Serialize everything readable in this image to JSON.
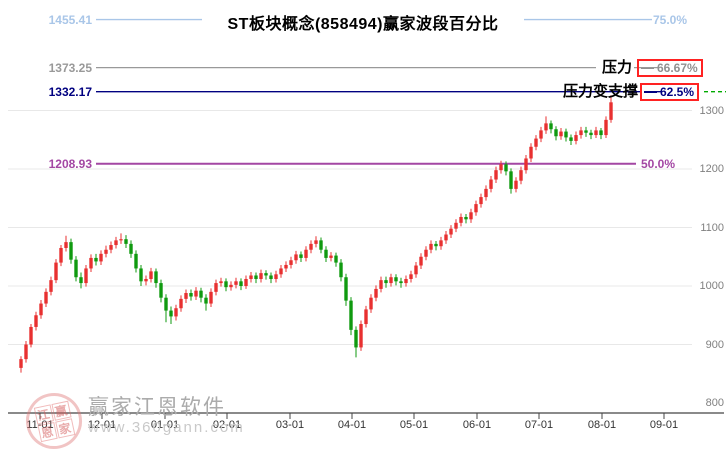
{
  "title": "ST板块概念(858494)赢家波段百分比",
  "levels": [
    {
      "price_label": "1455.41",
      "pct_label": "75.0%",
      "price": 1455.41,
      "color": "#a9c6e8",
      "annotation": "",
      "boxed": false
    },
    {
      "price_label": "1373.25",
      "pct_label": "66.67%",
      "price": 1373.25,
      "color": "#999999",
      "annotation": "压力",
      "boxed": true
    },
    {
      "price_label": "1332.17",
      "pct_label": "62.5%",
      "price": 1332.17,
      "color": "#000080",
      "annotation": "压力变支撑",
      "boxed": true
    },
    {
      "price_label": "1208.93",
      "pct_label": "50.0%",
      "price": 1208.93,
      "color": "#a347a3",
      "annotation": "",
      "boxed": false
    }
  ],
  "y_axis": {
    "tick_labels": [
      "1300",
      "1200",
      "1100",
      "1000",
      "900",
      "800"
    ],
    "tick_values": [
      1300,
      1200,
      1100,
      1000,
      900,
      800
    ]
  },
  "x_axis": {
    "tick_labels": [
      "11-01",
      "12-01",
      "01-01",
      "02-01",
      "03-01",
      "04-01",
      "05-01",
      "06-01",
      "07-01",
      "08-01",
      "09-01"
    ]
  },
  "watermark": {
    "brand": "赢家江恩软件",
    "url": "www.360gann.com",
    "seal_chars": [
      "江",
      "赢",
      "恩",
      "家"
    ]
  },
  "chart_data": {
    "type": "candlestick",
    "title": "ST板块概念(858494)赢家波段百分比",
    "ylim": [
      800,
      1455.41
    ],
    "x_range": [
      "11-01",
      "08-01+"
    ],
    "grid": true,
    "up_color": "#e83030",
    "down_color": "#0f9a0f",
    "support_resistance": [
      {
        "label": "75.0%",
        "price": 1455.41
      },
      {
        "label": "66.67%",
        "price": 1373.25,
        "name": "压力"
      },
      {
        "label": "62.5%",
        "price": 1332.17,
        "name": "压力变支撑"
      },
      {
        "label": "50.0%",
        "price": 1208.93
      }
    ],
    "candles_ohlc": [
      [
        860,
        880,
        852,
        875
      ],
      [
        875,
        906,
        869,
        900
      ],
      [
        900,
        935,
        895,
        930
      ],
      [
        930,
        956,
        924,
        950
      ],
      [
        950,
        976,
        944,
        970
      ],
      [
        970,
        996,
        964,
        990
      ],
      [
        990,
        1016,
        984,
        1010
      ],
      [
        1010,
        1046,
        1005,
        1040
      ],
      [
        1040,
        1070,
        1034,
        1065
      ],
      [
        1065,
        1086,
        1059,
        1075
      ],
      [
        1075,
        1081,
        1038,
        1045
      ],
      [
        1045,
        1051,
        1008,
        1015
      ],
      [
        1015,
        1023,
        996,
        1005
      ],
      [
        1005,
        1036,
        999,
        1030
      ],
      [
        1030,
        1054,
        1024,
        1048
      ],
      [
        1048,
        1055,
        1035,
        1042
      ],
      [
        1042,
        1061,
        1036,
        1055
      ],
      [
        1055,
        1069,
        1049,
        1062
      ],
      [
        1062,
        1076,
        1056,
        1070
      ],
      [
        1070,
        1084,
        1064,
        1078
      ],
      [
        1078,
        1090,
        1072,
        1080
      ],
      [
        1080,
        1087,
        1065,
        1072
      ],
      [
        1072,
        1078,
        1048,
        1055
      ],
      [
        1055,
        1061,
        1023,
        1030
      ],
      [
        1030,
        1036,
        1000,
        1008
      ],
      [
        1008,
        1018,
        1001,
        1012
      ],
      [
        1012,
        1031,
        1006,
        1025
      ],
      [
        1025,
        1030,
        997,
        1005
      ],
      [
        1005,
        1011,
        972,
        980
      ],
      [
        980,
        986,
        938,
        958
      ],
      [
        958,
        965,
        935,
        948
      ],
      [
        948,
        968,
        941,
        962
      ],
      [
        962,
        984,
        956,
        978
      ],
      [
        978,
        994,
        971,
        988
      ],
      [
        988,
        994,
        975,
        982
      ],
      [
        982,
        998,
        976,
        992
      ],
      [
        992,
        997,
        972,
        980
      ],
      [
        980,
        986,
        958,
        970
      ],
      [
        970,
        996,
        964,
        990
      ],
      [
        990,
        1011,
        984,
        1005
      ],
      [
        1005,
        1014,
        999,
        1008
      ],
      [
        1008,
        1013,
        991,
        998
      ],
      [
        998,
        1008,
        992,
        1002
      ],
      [
        1002,
        1014,
        996,
        1008
      ],
      [
        1008,
        1013,
        993,
        1000
      ],
      [
        1000,
        1018,
        995,
        1012
      ],
      [
        1012,
        1024,
        1006,
        1018
      ],
      [
        1018,
        1023,
        1005,
        1012
      ],
      [
        1012,
        1028,
        1006,
        1022
      ],
      [
        1022,
        1027,
        1011,
        1018
      ],
      [
        1018,
        1023,
        1005,
        1012
      ],
      [
        1012,
        1026,
        1006,
        1020
      ],
      [
        1020,
        1036,
        1014,
        1030
      ],
      [
        1030,
        1042,
        1024,
        1036
      ],
      [
        1036,
        1050,
        1030,
        1044
      ],
      [
        1044,
        1060,
        1038,
        1054
      ],
      [
        1054,
        1059,
        1041,
        1048
      ],
      [
        1048,
        1068,
        1042,
        1062
      ],
      [
        1062,
        1078,
        1056,
        1072
      ],
      [
        1072,
        1085,
        1066,
        1078
      ],
      [
        1078,
        1083,
        1056,
        1062
      ],
      [
        1062,
        1068,
        1041,
        1048
      ],
      [
        1048,
        1058,
        1042,
        1052
      ],
      [
        1052,
        1057,
        1033,
        1040
      ],
      [
        1040,
        1046,
        1008,
        1015
      ],
      [
        1015,
        1021,
        966,
        975
      ],
      [
        975,
        981,
        916,
        925
      ],
      [
        925,
        931,
        878,
        895
      ],
      [
        895,
        941,
        889,
        935
      ],
      [
        935,
        966,
        929,
        960
      ],
      [
        960,
        986,
        954,
        980
      ],
      [
        980,
        1001,
        974,
        995
      ],
      [
        995,
        1016,
        989,
        1010
      ],
      [
        1010,
        1016,
        997,
        1005
      ],
      [
        1005,
        1021,
        999,
        1015
      ],
      [
        1015,
        1020,
        1001,
        1008
      ],
      [
        1008,
        1014,
        997,
        1005
      ],
      [
        1005,
        1018,
        999,
        1012
      ],
      [
        1012,
        1026,
        1006,
        1020
      ],
      [
        1020,
        1041,
        1014,
        1035
      ],
      [
        1035,
        1056,
        1029,
        1050
      ],
      [
        1050,
        1068,
        1044,
        1062
      ],
      [
        1062,
        1078,
        1056,
        1072
      ],
      [
        1072,
        1077,
        1061,
        1068
      ],
      [
        1068,
        1084,
        1062,
        1078
      ],
      [
        1078,
        1094,
        1072,
        1088
      ],
      [
        1088,
        1104,
        1082,
        1098
      ],
      [
        1098,
        1114,
        1092,
        1108
      ],
      [
        1108,
        1124,
        1102,
        1118
      ],
      [
        1118,
        1123,
        1107,
        1114
      ],
      [
        1114,
        1132,
        1108,
        1126
      ],
      [
        1126,
        1146,
        1120,
        1140
      ],
      [
        1140,
        1158,
        1134,
        1152
      ],
      [
        1152,
        1172,
        1146,
        1166
      ],
      [
        1166,
        1188,
        1160,
        1182
      ],
      [
        1182,
        1204,
        1176,
        1198
      ],
      [
        1198,
        1214,
        1192,
        1208
      ],
      [
        1208,
        1213,
        1189,
        1196
      ],
      [
        1196,
        1201,
        1158,
        1166
      ],
      [
        1166,
        1186,
        1160,
        1180
      ],
      [
        1180,
        1204,
        1174,
        1198
      ],
      [
        1198,
        1224,
        1192,
        1218
      ],
      [
        1218,
        1244,
        1212,
        1238
      ],
      [
        1238,
        1258,
        1232,
        1252
      ],
      [
        1252,
        1272,
        1246,
        1266
      ],
      [
        1266,
        1290,
        1260,
        1278
      ],
      [
        1278,
        1283,
        1261,
        1268
      ],
      [
        1268,
        1273,
        1249,
        1256
      ],
      [
        1256,
        1270,
        1250,
        1264
      ],
      [
        1264,
        1269,
        1247,
        1254
      ],
      [
        1254,
        1259,
        1241,
        1248
      ],
      [
        1248,
        1264,
        1242,
        1258
      ],
      [
        1258,
        1272,
        1252,
        1266
      ],
      [
        1266,
        1272,
        1255,
        1262
      ],
      [
        1262,
        1267,
        1251,
        1258
      ],
      [
        1258,
        1272,
        1253,
        1266
      ],
      [
        1266,
        1270,
        1251,
        1258
      ],
      [
        1258,
        1290,
        1253,
        1284
      ],
      [
        1284,
        1326,
        1279,
        1314
      ]
    ]
  }
}
